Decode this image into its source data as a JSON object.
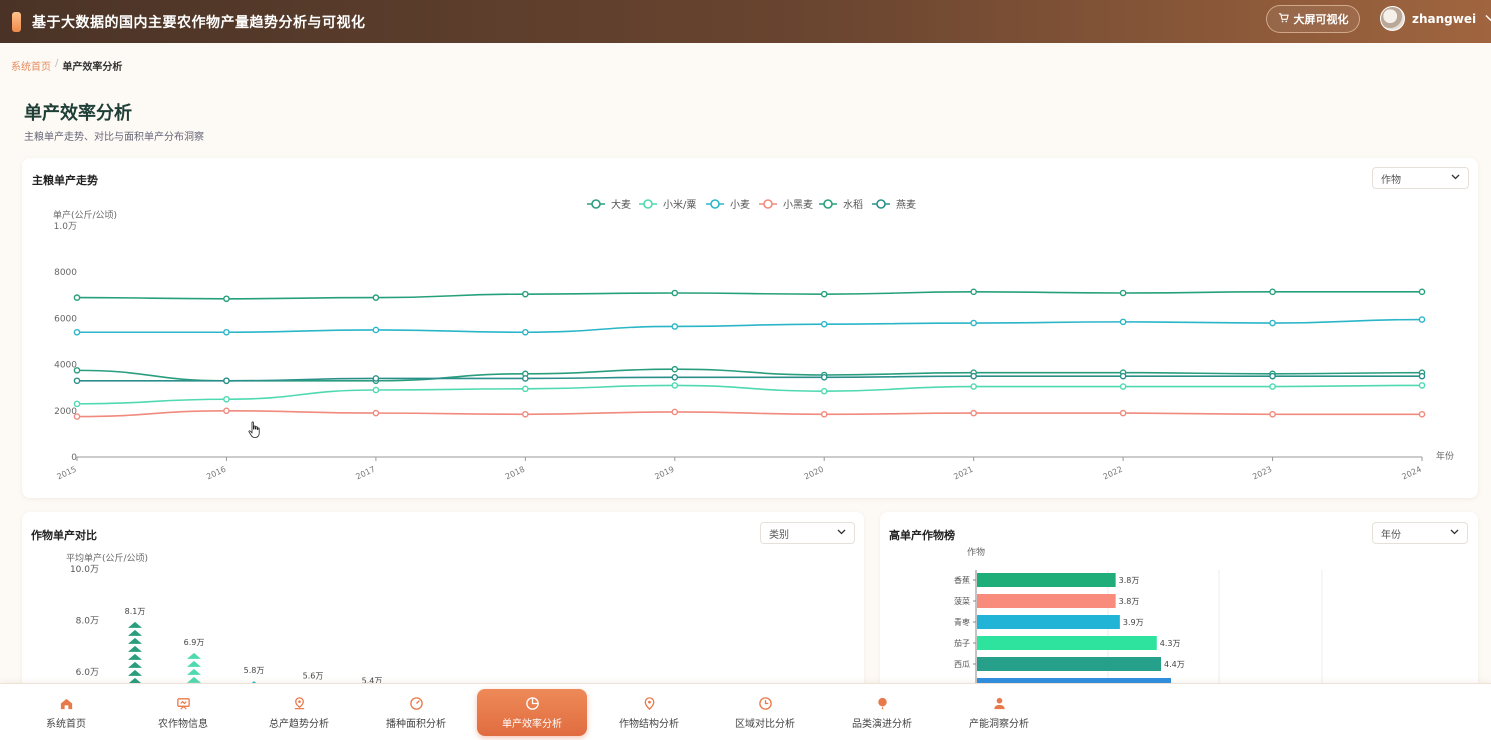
{
  "header": {
    "title": "基于大数据的国内主要农作物产量趋势分析与可视化",
    "bigscreen_label": "大屏可视化",
    "username": "zhangwei"
  },
  "breadcrumb": {
    "home": "系统首页",
    "separator": "/",
    "current": "单产效率分析"
  },
  "page": {
    "title": "单产效率分析",
    "subtitle": "主粮单产走势、对比与面积单产分布洞察"
  },
  "trend_panel": {
    "title": "主粮单产走势",
    "select_value": "作物"
  },
  "compare_panel": {
    "title": "作物单产对比",
    "select_value": "类别"
  },
  "rank_panel": {
    "title": "高单产作物榜",
    "select_value": "年份"
  },
  "nav": [
    {
      "label": "系统首页",
      "icon": "home-icon"
    },
    {
      "label": "农作物信息",
      "icon": "board-icon"
    },
    {
      "label": "总产趋势分析",
      "icon": "map-pin-icon"
    },
    {
      "label": "播种面积分析",
      "icon": "gauge-icon"
    },
    {
      "label": "单产效率分析",
      "icon": "pie-icon",
      "active": true
    },
    {
      "label": "作物结构分析",
      "icon": "location-icon"
    },
    {
      "label": "区域对比分析",
      "icon": "clock-icon"
    },
    {
      "label": "品类演进分析",
      "icon": "balloon-icon"
    },
    {
      "label": "产能洞察分析",
      "icon": "user-icon"
    }
  ],
  "colors": {
    "accent": "#e8794a",
    "header_start": "#4a3326",
    "header_end": "#a0653f"
  },
  "chart_data": [
    {
      "type": "line",
      "title": "主粮单产走势",
      "ylabel": "单产(公斤/公顷)",
      "xlabel": "年份",
      "ylim": [
        0,
        10000
      ],
      "y_ticks": [
        "0",
        "2000",
        "4000",
        "6000",
        "8000",
        "1.0万"
      ],
      "x": [
        "2015",
        "2016",
        "2017",
        "2018",
        "2019",
        "2020",
        "2021",
        "2022",
        "2023",
        "2024"
      ],
      "legend_position": "top-center",
      "series": [
        {
          "name": "大麦",
          "color": "#2a9d7f",
          "values": [
            3750,
            3300,
            3300,
            3600,
            3800,
            3550,
            3650,
            3650,
            3600,
            3650
          ]
        },
        {
          "name": "小米/粟",
          "color": "#4fd9b0",
          "values": [
            2300,
            2500,
            2900,
            2950,
            3100,
            2850,
            3050,
            3050,
            3050,
            3100
          ]
        },
        {
          "name": "小麦",
          "color": "#2bb6c8",
          "values": [
            5400,
            5400,
            5500,
            5400,
            5650,
            5750,
            5800,
            5850,
            5800,
            5950
          ]
        },
        {
          "name": "小黑麦",
          "color": "#f08a7e",
          "values": [
            1750,
            2000,
            1900,
            1850,
            1950,
            1850,
            1900,
            1900,
            1850,
            1850
          ]
        },
        {
          "name": "水稻",
          "color": "#26a07a",
          "values": [
            6900,
            6850,
            6900,
            7050,
            7100,
            7050,
            7150,
            7100,
            7150,
            7150
          ]
        },
        {
          "name": "燕麦",
          "color": "#2a8f8a",
          "values": [
            3300,
            3300,
            3400,
            3400,
            3450,
            3450,
            3500,
            3500,
            3500,
            3500
          ]
        }
      ]
    },
    {
      "type": "bar",
      "title": "作物单产对比",
      "ylabel": "平均单产(公斤/公顷)",
      "y_ticks": [
        "6.0万",
        "8.0万",
        "10.0万"
      ],
      "ylim_visible": [
        58000,
        100000
      ],
      "values": [
        81000,
        69000,
        58000,
        56000,
        54000
      ],
      "data_labels": [
        "8.1万",
        "6.9万",
        "5.8万",
        "5.6万",
        "5.4万"
      ],
      "colors": [
        "#2a9d7f",
        "#4fd9b0",
        "#2bb6c8",
        "#4fd9b0",
        "#2a9d7f"
      ]
    },
    {
      "type": "bar",
      "orientation": "horizontal",
      "title": "高单产作物榜",
      "ylabel": "作物",
      "categories": [
        "香蕉",
        "菠菜",
        "青枣",
        "茄子",
        "西瓜"
      ],
      "values": [
        38000,
        38000,
        39000,
        43000,
        44000
      ],
      "data_labels": [
        "3.8万",
        "3.8万",
        "3.9万",
        "4.3万",
        "4.4万"
      ],
      "colors": [
        "#1fae7a",
        "#f88b7b",
        "#21b4d6",
        "#2ee39d",
        "#26a08a",
        "#2e8fe0"
      ]
    }
  ]
}
